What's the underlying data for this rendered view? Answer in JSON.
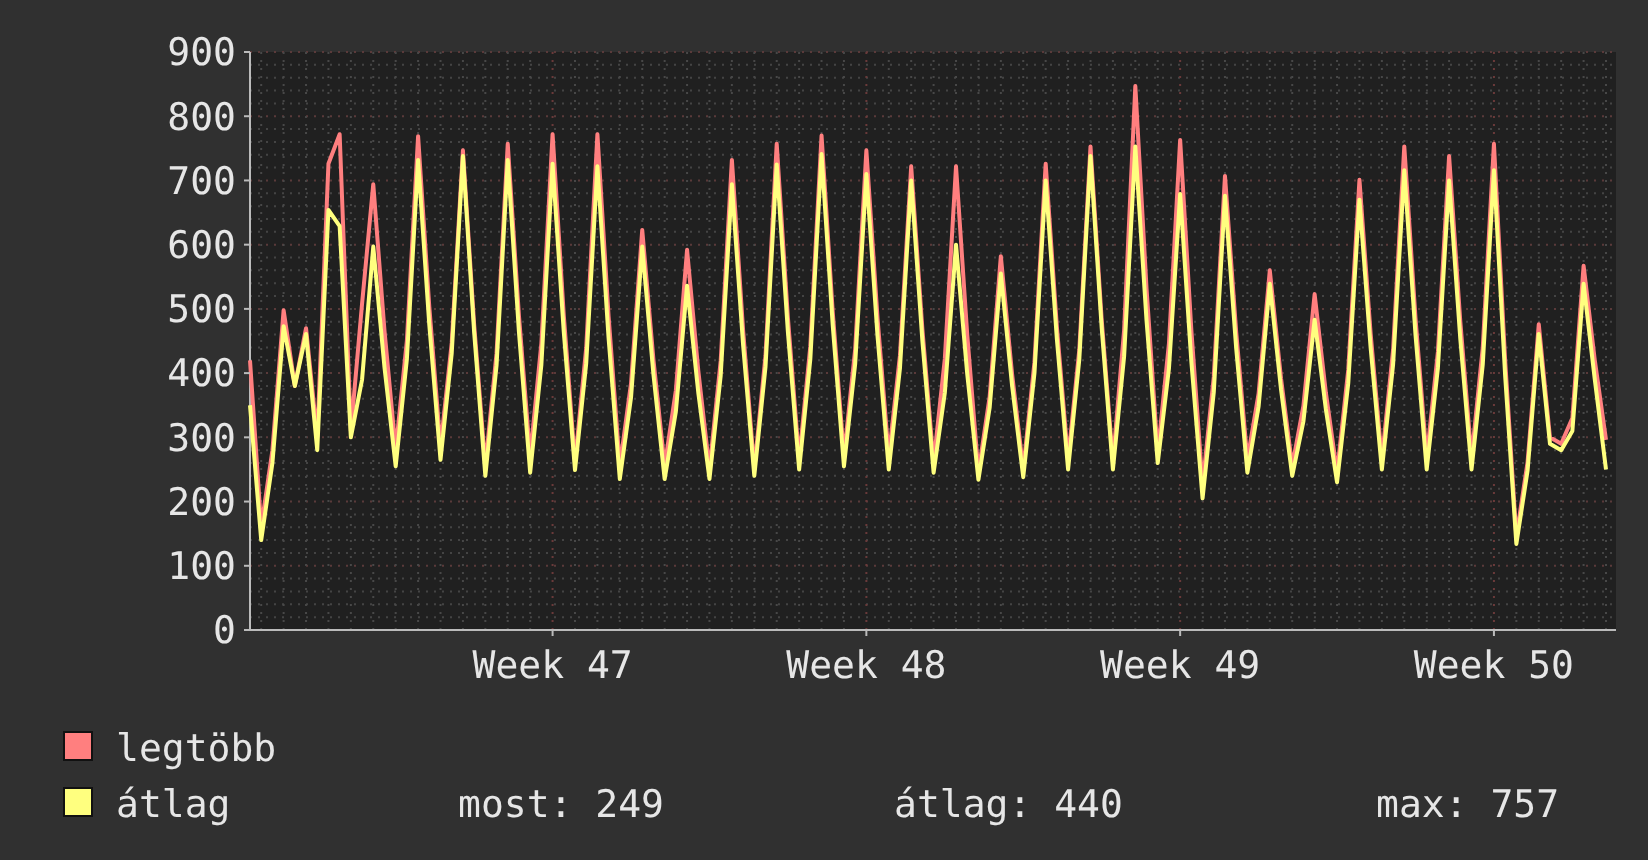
{
  "chart_data": {
    "type": "line",
    "categories": [
      null,
      null,
      null,
      null,
      null,
      null,
      null,
      null,
      null,
      null,
      null,
      null,
      null,
      null,
      null,
      null,
      null,
      null,
      null,
      null,
      null,
      null,
      null,
      null,
      null,
      null,
      null,
      "Week 47",
      null,
      null,
      null,
      null,
      null,
      null,
      null,
      null,
      null,
      null,
      null,
      null,
      null,
      null,
      null,
      null,
      null,
      null,
      null,
      null,
      null,
      null,
      null,
      null,
      null,
      null,
      null,
      "Week 48",
      null,
      null,
      null,
      null,
      null,
      null,
      null,
      null,
      null,
      null,
      null,
      null,
      null,
      null,
      null,
      null,
      null,
      null,
      null,
      null,
      null,
      null,
      null,
      null,
      null,
      null,
      null,
      "Week 49",
      null,
      null,
      null,
      null,
      null,
      null,
      null,
      null,
      null,
      null,
      null,
      null,
      null,
      null,
      null,
      null,
      null,
      null,
      null,
      null,
      null,
      null,
      null,
      null,
      null,
      null,
      null,
      "Week 50",
      null,
      null,
      null,
      null,
      null,
      null,
      null,
      null,
      null,
      null
    ],
    "series": [
      {
        "name": "legtöbb",
        "color": "#ff7f7f",
        "values": [
          420,
          160,
          280,
          498,
          380,
          470,
          300,
          726,
          772,
          310,
          508,
          694,
          466,
          280,
          451,
          769,
          503,
          285,
          447,
          747,
          476,
          255,
          431,
          757,
          489,
          270,
          446,
          772,
          490,
          260,
          439,
          772,
          488,
          255,
          384,
          623,
          421,
          255,
          373,
          592,
          404,
          250,
          419,
          732,
          467,
          250,
          427,
          757,
          486,
          265,
          442,
          770,
          495,
          270,
          437,
          747,
          485,
          270,
          428,
          722,
          468,
          260,
          422,
          722,
          460,
          245,
          363,
          582,
          399,
          250,
          417,
          726,
          472,
          265,
          436,
          753,
          483,
          262,
          467,
          847,
          532,
          275,
          446,
          763,
          467,
          225,
          394,
          707,
          464,
          265,
          368,
          560,
          392,
          255,
          349,
          523,
          370,
          245,
          405,
          701,
          461,
          265,
          436,
          753,
          486,
          268,
          433,
          738,
          480,
          268,
          439,
          757,
          420,
          145,
          261,
          476,
          300,
          290,
          330,
          567,
          420,
          296
        ]
      },
      {
        "name": "átlag",
        "color": "#ffff7f",
        "values": [
          350,
          140,
          260,
          473,
          380,
          461,
          280,
          654,
          629,
          300,
          390,
          597,
          409,
          255,
          422,
          732,
          475,
          265,
          431,
          738,
          464,
          240,
          412,
          732,
          464,
          245,
          413,
          726,
          464,
          249,
          415,
          722,
          454,
          235,
          362,
          597,
          398,
          235,
          340,
          536,
          370,
          235,
          396,
          694,
          444,
          240,
          410,
          725,
          464,
          250,
          422,
          741,
          474,
          255,
          414,
          710,
          457,
          250,
          408,
          700,
          450,
          245,
          369,
          600,
          399,
          234,
          346,
          555,
          381,
          238,
          400,
          700,
          453,
          250,
          421,
          738,
          470,
          250,
          426,
          753,
          482,
          260,
          407,
          679,
          418,
          205,
          370,
          676,
          439,
          245,
          348,
          539,
          375,
          240,
          325,
          483,
          344,
          230,
          384,
          670,
          439,
          250,
          413,
          716,
          460,
          250,
          408,
          700,
          453,
          250,
          413,
          716,
          396,
          134,
          248,
          461,
          290,
          280,
          310,
          539,
          390,
          250
        ]
      }
    ],
    "ylim": [
      0,
      900
    ],
    "yticks": [
      0,
      100,
      200,
      300,
      400,
      500,
      600,
      700,
      800,
      900
    ],
    "grid": true,
    "legend": "bottom",
    "line_style": "solid",
    "marker": "none",
    "annotations": [
      "most: 249",
      "átlag: 440",
      "max: 757"
    ]
  }
}
